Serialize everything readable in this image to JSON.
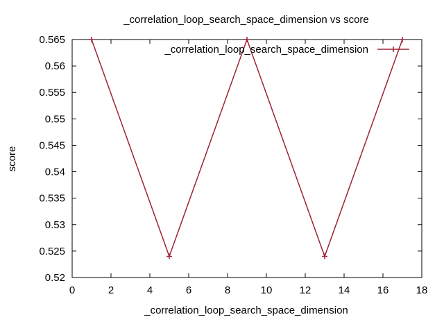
{
  "chart_data": {
    "type": "line",
    "title": "_correlation_loop_search_space_dimension vs score",
    "xlabel": "_correlation_loop_search_space_dimension",
    "ylabel": "score",
    "xlim": [
      0,
      18
    ],
    "ylim": [
      0.52,
      0.565
    ],
    "x_ticks": [
      "0",
      "2",
      "4",
      "6",
      "8",
      "10",
      "12",
      "14",
      "16",
      "18"
    ],
    "y_ticks": [
      "0.52",
      "0.525",
      "0.53",
      "0.535",
      "0.54",
      "0.545",
      "0.55",
      "0.555",
      "0.56",
      "0.565"
    ],
    "grid": false,
    "legend_position": "top-right",
    "series": [
      {
        "name": "_correlation_loop_search_space_dimension",
        "color": "#9b2335",
        "marker": "plus",
        "x": [
          1,
          5,
          9,
          13,
          17
        ],
        "y": [
          0.565,
          0.524,
          0.565,
          0.524,
          0.565
        ]
      }
    ]
  }
}
